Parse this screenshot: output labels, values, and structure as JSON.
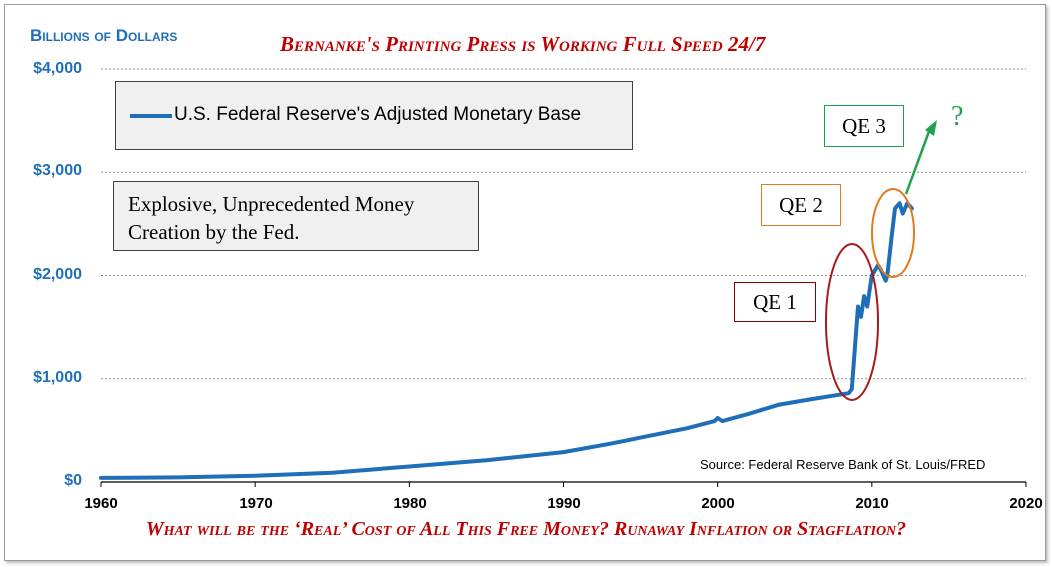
{
  "header": {
    "unit_label": "Billions of Dollars",
    "title": "Bernanke's Printing Press is Working Full Speed 24/7"
  },
  "footer": {
    "caption": "What will be the ‘Real’ Cost of All This Free Money? Runaway Inflation or Stagflation?"
  },
  "legend": {
    "series_label": "U.S. Federal Reserve's Adjusted Monetary Base"
  },
  "note": {
    "text": "Explosive, Unprecedented Money\nCreation by the Fed."
  },
  "annotations": {
    "qe1": "QE 1",
    "qe2": "QE 2",
    "qe3": "QE 3",
    "question": "?",
    "source": "Source: Federal Reserve Bank of St. Louis/FRED"
  },
  "colors": {
    "series": "#1f6fb8",
    "title_red": "#c00000",
    "qe1": "#8b0000",
    "qe2": "#e07b20",
    "qe3": "#1aa34a"
  },
  "chart_data": {
    "type": "line",
    "title": "Bernanke's Printing Press is Working Full Speed 24/7",
    "ylabel": "Billions of Dollars",
    "xlabel": "",
    "xlim": [
      1960,
      2020
    ],
    "ylim": [
      0,
      4000
    ],
    "x_ticks": [
      "1960",
      "1970",
      "1980",
      "1990",
      "2000",
      "2010",
      "2020"
    ],
    "y_ticks": [
      "$0",
      "$1,000",
      "$2,000",
      "$3,000",
      "$4,000"
    ],
    "grid": "horizontal dashed",
    "legend_position": "top-left",
    "series": [
      {
        "name": "U.S. Federal Reserve's Adjusted Monetary Base",
        "x": [
          1960,
          1965,
          1970,
          1975,
          1980,
          1985,
          1990,
          1993,
          1995,
          1998,
          1999.8,
          2000,
          2000.3,
          2002,
          2004,
          2006,
          2008.5,
          2008.7,
          2008.9,
          2009.1,
          2009.3,
          2009.5,
          2009.7,
          2010.0,
          2010.4,
          2010.6,
          2010.9,
          2011.0,
          2011.3,
          2011.5,
          2011.8,
          2012.0,
          2012.3,
          2012.6
        ],
        "values": [
          40,
          45,
          60,
          90,
          150,
          210,
          290,
          370,
          430,
          520,
          590,
          620,
          590,
          660,
          750,
          800,
          860,
          900,
          1300,
          1700,
          1600,
          1800,
          1700,
          2000,
          2100,
          2050,
          1950,
          2000,
          2400,
          2650,
          2700,
          2600,
          2700,
          2650
        ]
      }
    ]
  }
}
